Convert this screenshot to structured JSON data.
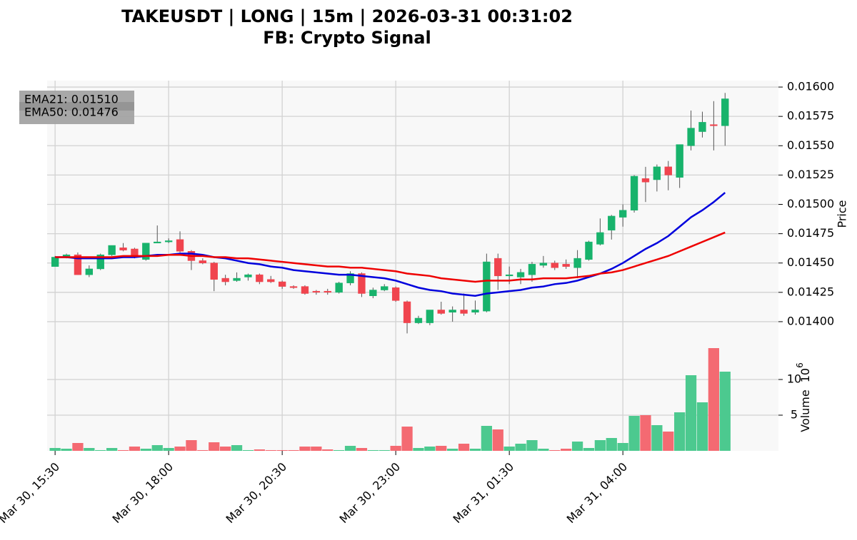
{
  "chart_data": {
    "type": "candlestick",
    "title": "TAKEUSDT | LONG | 15m | 2026-03-31 00:31:02",
    "subtitle": "FB: Crypto Signal",
    "y_label": "Price",
    "volume_label": "Volume",
    "volume_scale_base": "10",
    "volume_scale_exponent": "6",
    "up_color": "#18b36c",
    "down_color": "#f0444e",
    "volume_up_color": "#4cc98f",
    "volume_down_color": "#f46a72",
    "grid": true,
    "legend": "upper left",
    "xlim": [
      -0.7,
      63.7
    ],
    "xticks": [
      {
        "value": 0,
        "label": "Mar 30, 15:30"
      },
      {
        "value": 10,
        "label": "Mar 30, 18:00"
      },
      {
        "value": 20,
        "label": "Mar 30, 20:30"
      },
      {
        "value": 30,
        "label": "Mar 30, 23:00"
      },
      {
        "value": 40,
        "label": "Mar 31, 01:30"
      },
      {
        "value": 50,
        "label": "Mar 31, 04:00"
      }
    ],
    "ylim": [
      0.013805,
      0.016055
    ],
    "yticks": [
      {
        "value": 0.014,
        "label": "0.01400"
      },
      {
        "value": 0.01425,
        "label": "0.01425"
      },
      {
        "value": 0.0145,
        "label": "0.01450"
      },
      {
        "value": 0.01475,
        "label": "0.01475"
      },
      {
        "value": 0.015,
        "label": "0.01500"
      },
      {
        "value": 0.01525,
        "label": "0.01525"
      },
      {
        "value": 0.0155,
        "label": "0.01550"
      },
      {
        "value": 0.01575,
        "label": "0.01575"
      },
      {
        "value": 0.016,
        "label": "0.01600"
      }
    ],
    "volume_ylim": [
      0,
      14.9
    ],
    "volume_yticks": [
      5,
      10
    ],
    "open": [
      0.01447,
      0.01455,
      0.01457,
      0.0144,
      0.01445,
      0.01457,
      0.01463,
      0.01462,
      0.01453,
      0.01467,
      0.01468,
      0.0147,
      0.0146,
      0.01452,
      0.0145,
      0.01437,
      0.01435,
      0.01438,
      0.0144,
      0.01436,
      0.01434,
      0.0143,
      0.0143,
      0.01426,
      0.01426,
      0.01425,
      0.01433,
      0.01441,
      0.01422,
      0.01427,
      0.01429,
      0.01417,
      0.01399,
      0.01399,
      0.0141,
      0.01408,
      0.0141,
      0.01408,
      0.01409,
      0.01454,
      0.01439,
      0.01438,
      0.0144,
      0.01448,
      0.0145,
      0.01449,
      0.01446,
      0.01453,
      0.01466,
      0.01478,
      0.01489,
      0.01495,
      0.01522,
      0.01521,
      0.01532,
      0.01523,
      0.0155,
      0.01562,
      0.01568,
      0.01567
    ],
    "high": [
      0.01456,
      0.01458,
      0.01459,
      0.01448,
      0.01458,
      0.01465,
      0.01467,
      0.01463,
      0.01467,
      0.01482,
      0.01471,
      0.01477,
      0.01461,
      0.01454,
      0.01451,
      0.0144,
      0.01442,
      0.01441,
      0.01441,
      0.01439,
      0.01435,
      0.01431,
      0.01431,
      0.01427,
      0.01428,
      0.01434,
      0.01443,
      0.01442,
      0.01429,
      0.01432,
      0.0143,
      0.01418,
      0.01405,
      0.0141,
      0.01417,
      0.01413,
      0.01424,
      0.01418,
      0.01458,
      0.01458,
      0.01447,
      0.01445,
      0.01451,
      0.01456,
      0.01452,
      0.01453,
      0.01461,
      0.01469,
      0.01488,
      0.01491,
      0.015,
      0.01525,
      0.01532,
      0.01534,
      0.01537,
      0.01551,
      0.0158,
      0.01579,
      0.01588,
      0.01595
    ],
    "low": [
      0.01447,
      0.01454,
      0.0144,
      0.01438,
      0.01444,
      0.01456,
      0.0146,
      0.01454,
      0.01452,
      0.01467,
      0.01467,
      0.01459,
      0.01444,
      0.01449,
      0.01426,
      0.01431,
      0.01434,
      0.01435,
      0.01432,
      0.01433,
      0.01428,
      0.01428,
      0.01423,
      0.01423,
      0.01423,
      0.01424,
      0.01431,
      0.01421,
      0.0142,
      0.01426,
      0.01417,
      0.0139,
      0.01398,
      0.01397,
      0.01406,
      0.014,
      0.01405,
      0.01406,
      0.01408,
      0.01427,
      0.01432,
      0.01432,
      0.01434,
      0.01446,
      0.01444,
      0.01445,
      0.01437,
      0.01452,
      0.01465,
      0.0147,
      0.01481,
      0.01493,
      0.01502,
      0.01511,
      0.01512,
      0.01514,
      0.01546,
      0.01557,
      0.01546,
      0.0155
    ],
    "close": [
      0.01455,
      0.01457,
      0.0144,
      0.01445,
      0.01457,
      0.01465,
      0.01461,
      0.01455,
      0.01467,
      0.01468,
      0.01469,
      0.0146,
      0.01452,
      0.0145,
      0.01436,
      0.01434,
      0.01437,
      0.0144,
      0.01434,
      0.01434,
      0.0143,
      0.01429,
      0.01424,
      0.01425,
      0.01425,
      0.01433,
      0.01441,
      0.01424,
      0.01427,
      0.0143,
      0.01418,
      0.01399,
      0.01403,
      0.0141,
      0.01407,
      0.0141,
      0.01407,
      0.0141,
      0.01451,
      0.01439,
      0.0144,
      0.01442,
      0.01449,
      0.0145,
      0.01446,
      0.01447,
      0.01454,
      0.01468,
      0.01476,
      0.0149,
      0.01495,
      0.01524,
      0.01519,
      0.01532,
      0.01525,
      0.01551,
      0.01565,
      0.0157,
      0.01567,
      0.0159
    ],
    "volume": [
      0.4,
      0.3,
      1.1,
      0.4,
      0.1,
      0.4,
      0.1,
      0.6,
      0.3,
      0.8,
      0.4,
      0.6,
      1.5,
      0.1,
      1.2,
      0.6,
      0.8,
      0.1,
      0.2,
      0.1,
      0.1,
      0.1,
      0.6,
      0.6,
      0.2,
      0.1,
      0.7,
      0.4,
      0.1,
      0.1,
      0.7,
      3.4,
      0.4,
      0.6,
      0.7,
      0.3,
      1.0,
      0.3,
      3.5,
      3.0,
      0.6,
      1.0,
      1.5,
      0.3,
      0.1,
      0.3,
      1.3,
      0.4,
      1.5,
      1.8,
      1.1,
      4.9,
      5.0,
      3.6,
      2.7,
      5.4,
      10.6,
      6.8,
      14.4,
      11.1
    ],
    "series": [
      {
        "name": "EMA21: 0.01510",
        "color": "#0000dd",
        "values": [
          0.01455,
          0.01455,
          0.01454,
          0.01454,
          0.01454,
          0.01454,
          0.01455,
          0.01455,
          0.01456,
          0.01457,
          0.01457,
          0.01458,
          0.01458,
          0.01457,
          0.01455,
          0.01454,
          0.01452,
          0.0145,
          0.01449,
          0.01447,
          0.01446,
          0.01444,
          0.01443,
          0.01442,
          0.01441,
          0.0144,
          0.0144,
          0.01439,
          0.01438,
          0.01437,
          0.01435,
          0.01432,
          0.01429,
          0.01427,
          0.01426,
          0.01424,
          0.01423,
          0.01422,
          0.01424,
          0.01425,
          0.01426,
          0.01427,
          0.01429,
          0.0143,
          0.01432,
          0.01433,
          0.01435,
          0.01438,
          0.01441,
          0.01445,
          0.0145,
          0.01456,
          0.01462,
          0.01467,
          0.01473,
          0.01481,
          0.01489,
          0.01495,
          0.01502,
          0.0151
        ]
      },
      {
        "name": "EMA50: 0.01476",
        "color": "#ee0000",
        "values": [
          0.01455,
          0.01455,
          0.01455,
          0.01455,
          0.01455,
          0.01455,
          0.01456,
          0.01456,
          0.01456,
          0.01456,
          0.01457,
          0.01457,
          0.01456,
          0.01456,
          0.01455,
          0.01455,
          0.01454,
          0.01454,
          0.01453,
          0.01452,
          0.01451,
          0.0145,
          0.01449,
          0.01448,
          0.01447,
          0.01447,
          0.01446,
          0.01446,
          0.01445,
          0.01444,
          0.01443,
          0.01441,
          0.0144,
          0.01439,
          0.01437,
          0.01436,
          0.01435,
          0.01434,
          0.01435,
          0.01435,
          0.01435,
          0.01436,
          0.01436,
          0.01437,
          0.01437,
          0.01437,
          0.01438,
          0.01439,
          0.01441,
          0.01442,
          0.01444,
          0.01447,
          0.0145,
          0.01453,
          0.01456,
          0.0146,
          0.01464,
          0.01468,
          0.01472,
          0.01476
        ]
      }
    ]
  }
}
